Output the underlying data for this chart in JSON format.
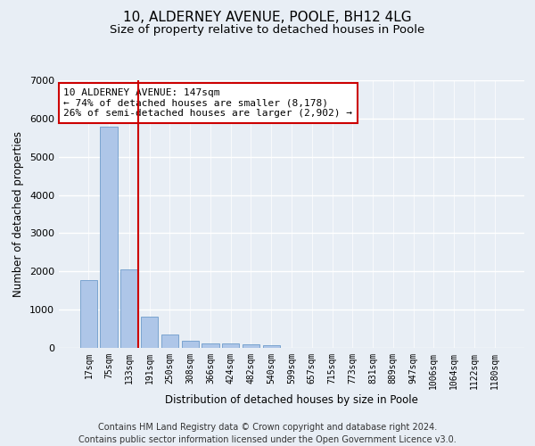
{
  "title": "10, ALDERNEY AVENUE, POOLE, BH12 4LG",
  "subtitle": "Size of property relative to detached houses in Poole",
  "xlabel": "Distribution of detached houses by size in Poole",
  "ylabel": "Number of detached properties",
  "categories": [
    "17sqm",
    "75sqm",
    "133sqm",
    "191sqm",
    "250sqm",
    "308sqm",
    "366sqm",
    "424sqm",
    "482sqm",
    "540sqm",
    "599sqm",
    "657sqm",
    "715sqm",
    "773sqm",
    "831sqm",
    "889sqm",
    "947sqm",
    "1006sqm",
    "1064sqm",
    "1122sqm",
    "1180sqm"
  ],
  "values": [
    1780,
    5780,
    2060,
    820,
    340,
    190,
    120,
    110,
    90,
    65,
    0,
    0,
    0,
    0,
    0,
    0,
    0,
    0,
    0,
    0,
    0
  ],
  "bar_color": "#aec6e8",
  "bar_edge_color": "#5a8fc4",
  "highlight_index": 2,
  "highlight_line_color": "#cc0000",
  "annotation_text": "10 ALDERNEY AVENUE: 147sqm\n← 74% of detached houses are smaller (8,178)\n26% of semi-detached houses are larger (2,902) →",
  "annotation_box_color": "#ffffff",
  "annotation_box_edge_color": "#cc0000",
  "ylim": [
    0,
    7000
  ],
  "yticks": [
    0,
    1000,
    2000,
    3000,
    4000,
    5000,
    6000,
    7000
  ],
  "background_color": "#e8eef5",
  "grid_color": "#ffffff",
  "footer_line1": "Contains HM Land Registry data © Crown copyright and database right 2024.",
  "footer_line2": "Contains public sector information licensed under the Open Government Licence v3.0.",
  "title_fontsize": 11,
  "subtitle_fontsize": 9.5,
  "axis_label_fontsize": 8.5,
  "tick_fontsize": 7,
  "annotation_fontsize": 8,
  "footer_fontsize": 7
}
